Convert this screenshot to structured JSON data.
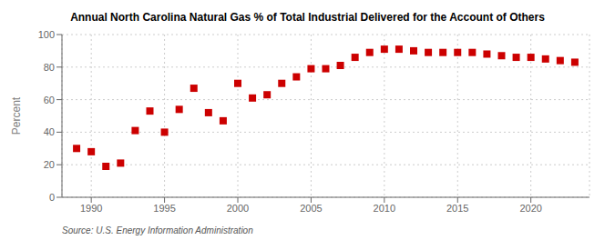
{
  "chart_data": {
    "type": "scatter",
    "title": "Annual North Carolina Natural Gas % of Total Industrial Delivered for the Account of Others",
    "ylabel": "Percent",
    "source": "Source: U.S. Energy Information Administration",
    "x": [
      1989,
      1990,
      1991,
      1992,
      1993,
      1994,
      1995,
      1996,
      1997,
      1998,
      1999,
      2000,
      2001,
      2002,
      2003,
      2004,
      2005,
      2006,
      2007,
      2008,
      2009,
      2010,
      2011,
      2012,
      2013,
      2014,
      2015,
      2016,
      2017,
      2018,
      2019,
      2020,
      2021,
      2022,
      2023
    ],
    "values": [
      30,
      28,
      19,
      21,
      41,
      53,
      40,
      54,
      67,
      52,
      47,
      70,
      61,
      63,
      70,
      74,
      79,
      79,
      81,
      86,
      89,
      91,
      91,
      90,
      89,
      89,
      89,
      89,
      88,
      87,
      86,
      86,
      85,
      84,
      83
    ],
    "color": "#cc0000",
    "marker": "square",
    "xlim": [
      1988,
      2024
    ],
    "ylim": [
      0,
      100
    ],
    "xticks": [
      1990,
      1995,
      2000,
      2005,
      2010,
      2015,
      2020
    ],
    "yticks": [
      0,
      20,
      40,
      60,
      80,
      100
    ],
    "grid": true
  }
}
